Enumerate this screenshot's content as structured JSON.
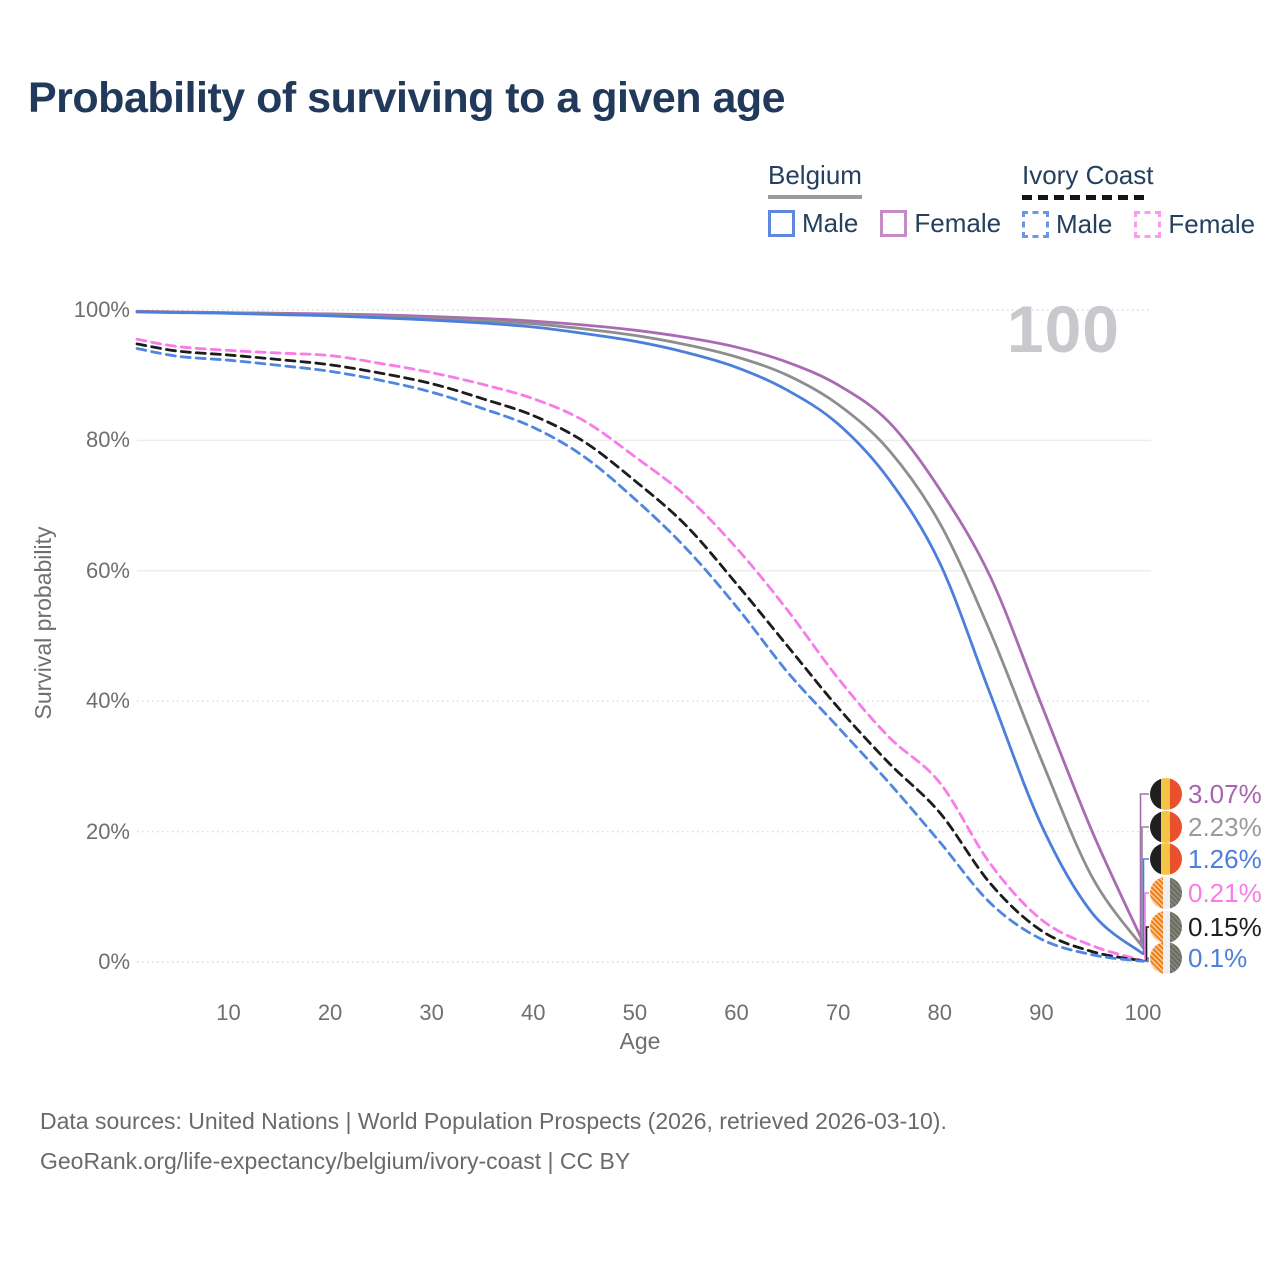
{
  "title": "Probability of surviving to a given age",
  "watermark": "100",
  "legend": {
    "groups": [
      {
        "label": "Belgium",
        "line_style": "solid",
        "underline_color": "#9b9b9b",
        "items": [
          {
            "label": "Male",
            "color": "#5c88dd",
            "dashed": false
          },
          {
            "label": "Female",
            "color": "#c38cc6",
            "dashed": false
          }
        ]
      },
      {
        "label": "Ivory Coast",
        "line_style": "dashed",
        "underline_color": "#141414",
        "items": [
          {
            "label": "Male",
            "color": "#6a96e3",
            "dashed": true
          },
          {
            "label": "Female",
            "color": "#fb9bef",
            "dashed": true
          }
        ]
      }
    ]
  },
  "axes": {
    "x": {
      "label": "Age",
      "ticks": [
        10,
        20,
        30,
        40,
        50,
        60,
        70,
        80,
        90,
        100
      ]
    },
    "y": {
      "label": "Survival probability",
      "ticks": [
        0,
        20,
        40,
        60,
        80,
        100
      ],
      "tick_suffix": "%"
    }
  },
  "chart_data": {
    "type": "line",
    "title": "Probability of surviving to a given age",
    "xlabel": "Age",
    "ylabel": "Survival probability",
    "xlim": [
      1,
      100
    ],
    "ylim": [
      0,
      100
    ],
    "grid": true,
    "legend_position": "top-right",
    "x": [
      1,
      5,
      10,
      15,
      20,
      25,
      30,
      35,
      40,
      45,
      50,
      55,
      60,
      65,
      70,
      75,
      80,
      85,
      90,
      95,
      100
    ],
    "series": [
      {
        "name": "Belgium Female",
        "country": "Belgium",
        "sex": "Female",
        "style": "solid",
        "color": "#a96cb2",
        "end_label": "3.07%",
        "end_label_color": "#a765b0",
        "values": [
          99.8,
          99.7,
          99.6,
          99.5,
          99.4,
          99.25,
          99.0,
          98.7,
          98.3,
          97.7,
          96.9,
          95.8,
          94.3,
          92.0,
          88.5,
          82.8,
          72.5,
          59.0,
          39.5,
          20.0,
          3.07
        ]
      },
      {
        "name": "Belgium Both sexes",
        "country": "Belgium",
        "sex": "Both",
        "style": "solid",
        "color": "#8e8e8e",
        "end_label": "2.23%",
        "end_label_color": "#9b9b9b",
        "values": [
          99.75,
          99.65,
          99.55,
          99.4,
          99.25,
          99.0,
          98.7,
          98.35,
          97.9,
          97.1,
          96.1,
          94.7,
          92.8,
          90.0,
          85.5,
          78.5,
          67.3,
          50.5,
          31.0,
          13.0,
          2.23
        ]
      },
      {
        "name": "Belgium Male",
        "country": "Belgium",
        "sex": "Male",
        "style": "solid",
        "color": "#4b7fdb",
        "end_label": "1.26%",
        "end_label_color": "#4b7fdb",
        "values": [
          99.7,
          99.6,
          99.5,
          99.3,
          99.1,
          98.8,
          98.45,
          98.0,
          97.4,
          96.4,
          95.2,
          93.5,
          91.2,
          87.7,
          82.5,
          74.0,
          61.2,
          41.0,
          21.0,
          7.5,
          1.26
        ]
      },
      {
        "name": "Ivory Coast Female",
        "country": "Ivory Coast",
        "sex": "Female",
        "style": "dashed",
        "color": "#f87ce8",
        "end_label": "0.21%",
        "end_label_color": "#f87ce8",
        "values": [
          95.5,
          94.4,
          93.8,
          93.4,
          93.0,
          91.8,
          90.4,
          88.6,
          86.4,
          83.0,
          77.5,
          71.5,
          63.5,
          54.0,
          43.5,
          34.5,
          27.5,
          15.0,
          6.5,
          2.5,
          0.21
        ]
      },
      {
        "name": "Ivory Coast Both sexes",
        "country": "Ivory Coast",
        "sex": "Both",
        "style": "dashed",
        "color": "#1c1c1c",
        "end_label": "0.15%",
        "end_label_color": "#1d1d1d",
        "values": [
          94.8,
          93.7,
          93.1,
          92.4,
          91.6,
          90.3,
          88.7,
          86.4,
          83.8,
          79.8,
          73.8,
          67.0,
          58.0,
          48.5,
          39.0,
          30.5,
          22.9,
          12.0,
          4.8,
          1.6,
          0.15
        ]
      },
      {
        "name": "Ivory Coast Male",
        "country": "Ivory Coast",
        "sex": "Male",
        "style": "dashed",
        "color": "#4f86e0",
        "end_label": "0.1%",
        "end_label_color": "#4b7fdb",
        "values": [
          94.1,
          92.9,
          92.3,
          91.5,
          90.6,
          89.2,
          87.4,
          84.9,
          82.0,
          77.5,
          71.0,
          63.5,
          54.5,
          44.5,
          36.0,
          27.5,
          18.4,
          9.0,
          3.5,
          1.1,
          0.1
        ]
      }
    ]
  },
  "footer": {
    "line1": "Data sources: United Nations | World Population Prospects (2026, retrieved 2026-03-10).",
    "line2": "GeoRank.org/life-expectancy/belgium/ivory-coast | CC BY"
  },
  "colors": {
    "title_text": "#21395a",
    "axis_text": "#6f6f6f",
    "footer_text": "#6a6a6a",
    "watermark": "#c8c8cd",
    "gridline": "#ececec",
    "flag_belgium": [
      "#1f1f1f",
      "#f6c445",
      "#e8512b"
    ],
    "flag_ivory_coast": [
      "#ef8018",
      "#f0f0f0",
      "#6c6c63"
    ]
  }
}
